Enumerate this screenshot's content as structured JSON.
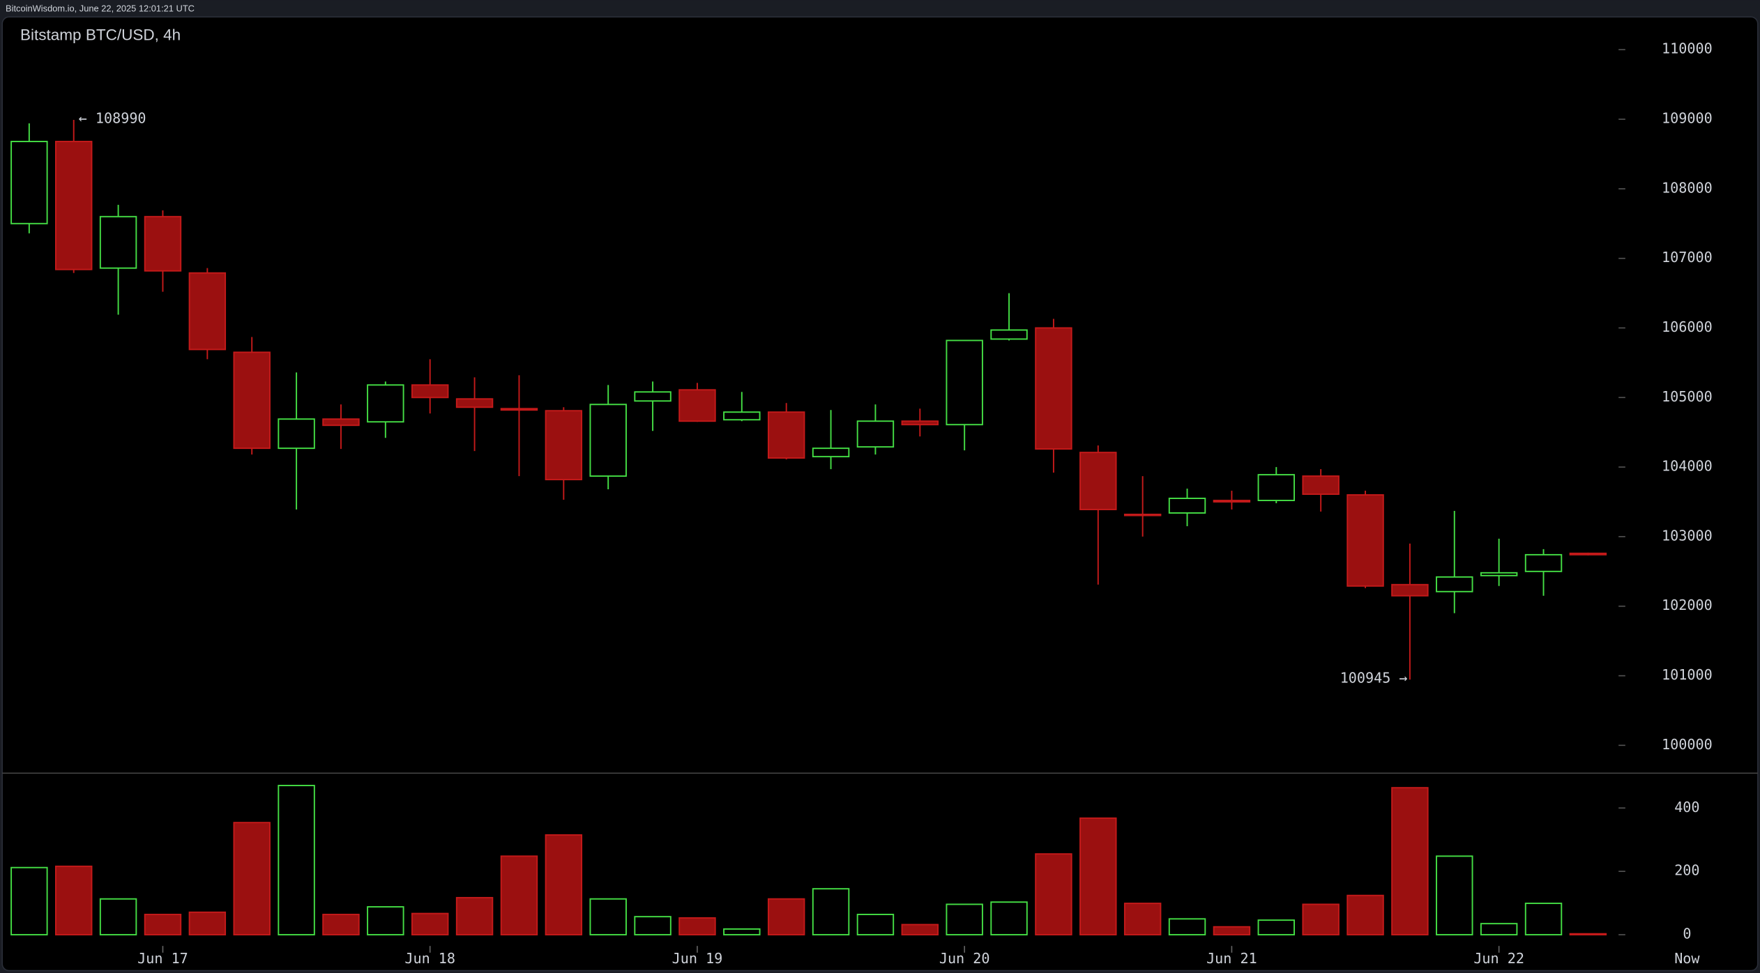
{
  "chart_data": {
    "type": "candlestick",
    "source": "BitcoinWisdom.io, June 22, 2025 12:01:21 UTC",
    "title": "Bitstamp BTC/USD, 4h",
    "annotations": [
      "← 108990",
      "100945 →"
    ],
    "categories": [
      null,
      null,
      null,
      "Jun 17",
      null,
      null,
      null,
      null,
      null,
      "Jun 18",
      null,
      null,
      null,
      null,
      null,
      "Jun 19",
      null,
      null,
      null,
      null,
      null,
      "Jun 20",
      null,
      null,
      null,
      null,
      null,
      "Jun 21",
      null,
      null,
      null,
      null,
      null,
      "Jun 22",
      null,
      null
    ],
    "now_label": "Now",
    "open": [
      107500,
      108680,
      106860,
      107600,
      106790,
      105650,
      104270,
      104690,
      104650,
      105180,
      104980,
      104840,
      104810,
      103870,
      104950,
      105110,
      104680,
      104790,
      104150,
      104290,
      104660,
      104610,
      105840,
      106000,
      104210,
      103320,
      103340,
      103520,
      103520,
      103870,
      103600,
      102310,
      102210,
      102440,
      102500,
      102760
    ],
    "high": [
      108940,
      108990,
      107770,
      107690,
      106860,
      105870,
      105360,
      104900,
      105230,
      105550,
      105290,
      105320,
      104860,
      105180,
      105230,
      105210,
      105080,
      104920,
      104820,
      104900,
      104840,
      105820,
      106500,
      106130,
      104310,
      103870,
      103690,
      103660,
      104000,
      103970,
      103660,
      102900,
      103370,
      102970,
      102820,
      102770
    ],
    "low": [
      107360,
      106790,
      106190,
      106520,
      105550,
      104180,
      103390,
      104260,
      104420,
      104770,
      104230,
      103870,
      103530,
      103680,
      104520,
      104650,
      104660,
      104110,
      103970,
      104180,
      104440,
      104240,
      105820,
      103920,
      102310,
      103000,
      103150,
      103390,
      103480,
      103360,
      102260,
      100945,
      101900,
      102290,
      102150,
      102730
    ],
    "close": [
      108680,
      106840,
      107600,
      106820,
      105690,
      104270,
      104690,
      104600,
      105180,
      105000,
      104860,
      104820,
      103820,
      104900,
      105080,
      104660,
      104790,
      104130,
      104270,
      104660,
      104610,
      105820,
      105970,
      104260,
      103390,
      103310,
      103550,
      103500,
      103890,
      103610,
      102290,
      102150,
      102420,
      102480,
      102740,
      102740
    ],
    "volume": [
      212,
      216,
      113,
      64,
      71,
      354,
      471,
      64,
      88,
      67,
      117,
      248,
      315,
      113,
      57,
      53,
      18,
      113,
      145,
      64,
      32,
      96,
      103,
      255,
      368,
      99,
      50,
      25,
      46,
      96,
      124,
      464,
      248,
      35,
      99,
      3
    ],
    "up_color": "#44dd44",
    "down_color": "#9b1010",
    "ylim": [
      99600,
      110470
    ],
    "yticks": [
      100000,
      101000,
      102000,
      103000,
      104000,
      105000,
      106000,
      107000,
      108000,
      109000,
      110000
    ],
    "y2lim": [
      0,
      510
    ],
    "y2ticks": [
      0,
      200,
      400
    ]
  }
}
